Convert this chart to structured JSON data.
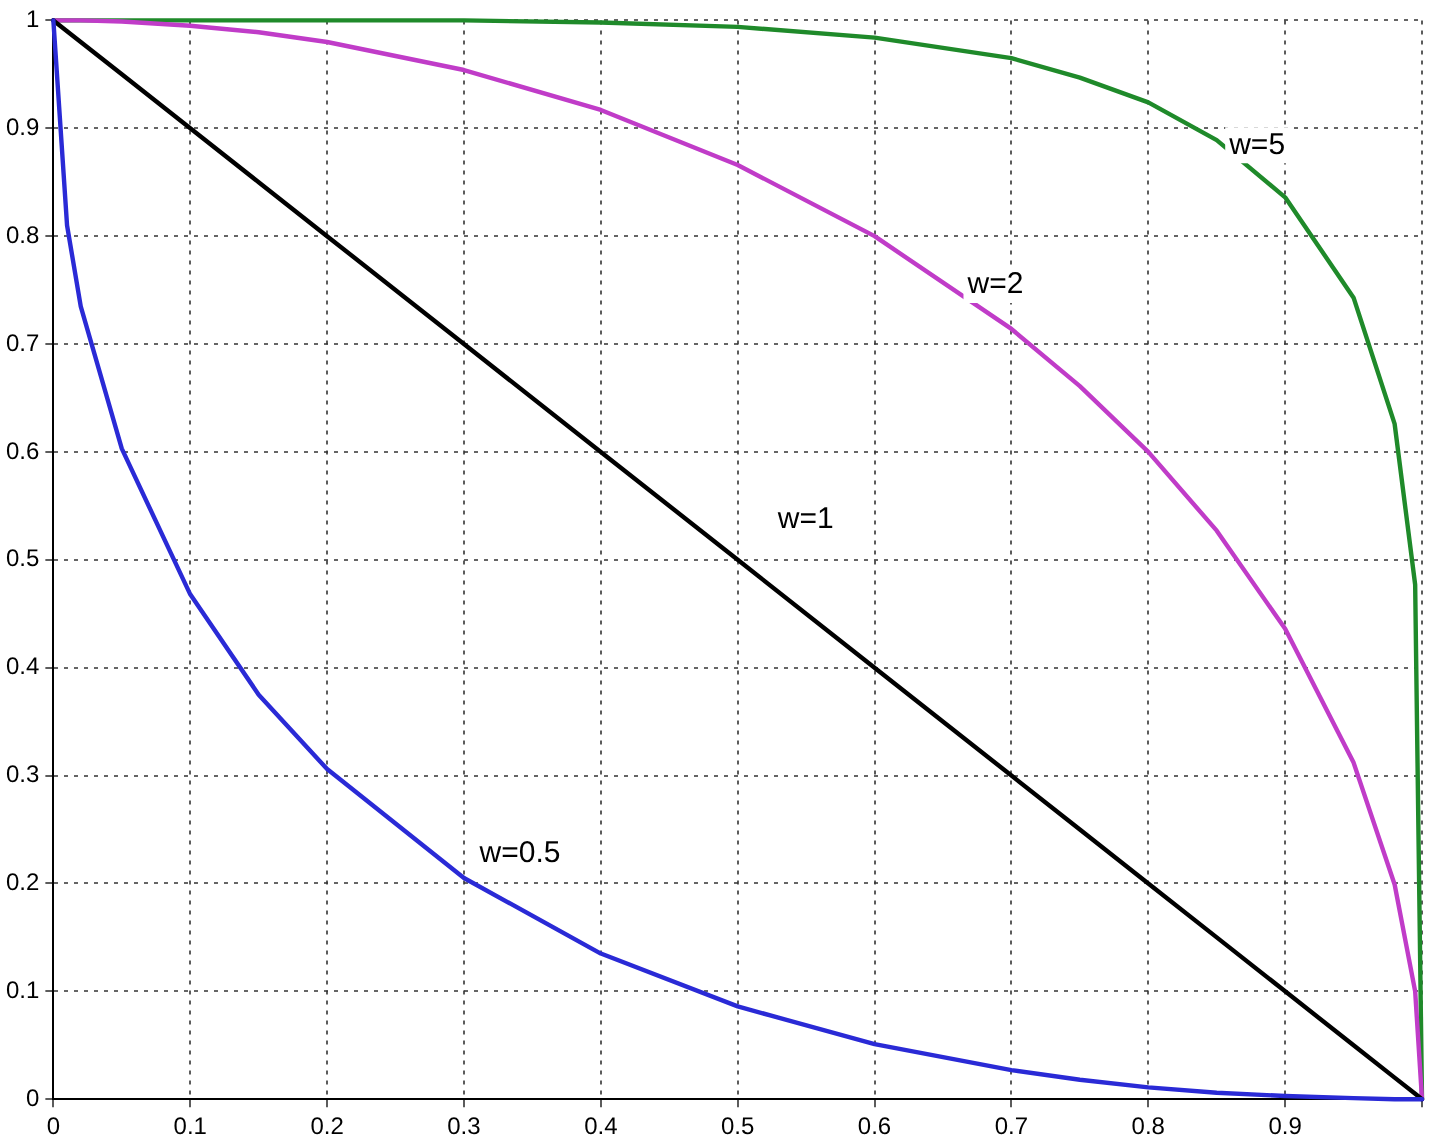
{
  "chart_data": {
    "type": "line",
    "x": [
      0,
      0.01,
      0.02,
      0.05,
      0.1,
      0.15,
      0.2,
      0.3,
      0.4,
      0.5,
      0.6,
      0.7,
      0.75,
      0.8,
      0.85,
      0.9,
      0.95,
      0.98,
      0.995,
      1
    ],
    "series": [
      {
        "name": "w=0.5",
        "color": "#2a2ad6",
        "values": [
          1,
          0.81,
          0.735,
          0.603,
          0.468,
          0.375,
          0.306,
          0.205,
          0.135,
          0.086,
          0.051,
          0.027,
          0.018,
          0.011,
          0.006,
          0.003,
          0.001,
          0,
          0,
          0
        ]
      },
      {
        "name": "w=1",
        "color": "#000000",
        "values": [
          1,
          0.99,
          0.98,
          0.95,
          0.9,
          0.85,
          0.8,
          0.7,
          0.6,
          0.5,
          0.4,
          0.3,
          0.25,
          0.2,
          0.15,
          0.1,
          0.05,
          0.02,
          0.005,
          0
        ]
      },
      {
        "name": "w=2",
        "color": "#c03cc8",
        "values": [
          1,
          1,
          1,
          0.999,
          0.995,
          0.989,
          0.98,
          0.954,
          0.917,
          0.866,
          0.8,
          0.714,
          0.661,
          0.6,
          0.527,
          0.436,
          0.312,
          0.199,
          0.1,
          0
        ]
      },
      {
        "name": "w=5",
        "color": "#1f8a2a",
        "values": [
          1,
          1,
          1,
          1,
          1,
          1,
          1,
          1,
          0.998,
          0.994,
          0.984,
          0.965,
          0.947,
          0.924,
          0.889,
          0.836,
          0.743,
          0.626,
          0.477,
          0
        ]
      }
    ],
    "xlim": [
      0,
      1
    ],
    "ylim": [
      0,
      1
    ],
    "xticks": [
      0,
      0.1,
      0.2,
      0.3,
      0.4,
      0.5,
      0.6,
      0.7,
      0.8,
      0.9,
      {
        "value": 1,
        "label": null
      }
    ],
    "yticks": [
      0,
      0.1,
      0.2,
      0.3,
      0.4,
      0.5,
      0.6,
      0.7,
      0.8,
      0.9,
      1
    ],
    "grid": true,
    "legend": false,
    "marker": "none",
    "line_style": "solid"
  }
}
